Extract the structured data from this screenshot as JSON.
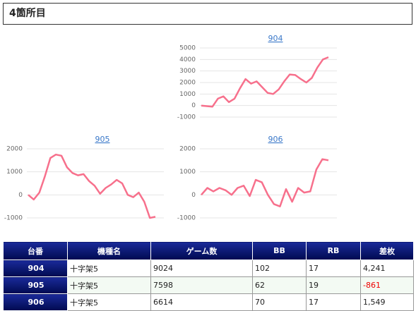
{
  "header": {
    "title": "4箇所目"
  },
  "chart_data": [
    {
      "type": "line",
      "title": "904",
      "color": "#f7708c",
      "ylim": [
        -1000,
        5000
      ],
      "yticks": [
        -1000,
        0,
        1000,
        2000,
        3000,
        4000,
        5000
      ],
      "values": [
        0,
        -50,
        -100,
        600,
        800,
        300,
        600,
        1500,
        2300,
        1900,
        2100,
        1600,
        1100,
        1000,
        1400,
        2100,
        2700,
        2650,
        2300,
        2000,
        2400,
        3300,
        4000,
        4200
      ]
    },
    {
      "type": "line",
      "title": "905",
      "color": "#f7708c",
      "ylim": [
        -1000,
        2000
      ],
      "yticks": [
        -1000,
        0,
        1000,
        2000
      ],
      "values": [
        0,
        -200,
        100,
        800,
        1600,
        1750,
        1700,
        1200,
        950,
        850,
        900,
        600,
        400,
        50,
        300,
        450,
        650,
        500,
        0,
        -100,
        100,
        -300,
        -1000,
        -950
      ]
    },
    {
      "type": "line",
      "title": "906",
      "color": "#f7708c",
      "ylim": [
        -1000,
        2000
      ],
      "yticks": [
        -1000,
        0,
        1000,
        2000
      ],
      "values": [
        0,
        300,
        150,
        300,
        200,
        0,
        300,
        400,
        -50,
        650,
        550,
        0,
        -400,
        -500,
        250,
        -300,
        300,
        100,
        150,
        1100,
        1550,
        1500
      ]
    }
  ],
  "table": {
    "columns": [
      "台番",
      "機種名",
      "ゲーム数",
      "BB",
      "RB",
      "差枚"
    ],
    "rows": [
      [
        "904",
        "十字架5",
        "9024",
        "102",
        "17",
        "4,241"
      ],
      [
        "905",
        "十字架5",
        "7598",
        "62",
        "19",
        "-861"
      ],
      [
        "906",
        "十字架5",
        "6614",
        "70",
        "17",
        "1,549"
      ]
    ]
  }
}
